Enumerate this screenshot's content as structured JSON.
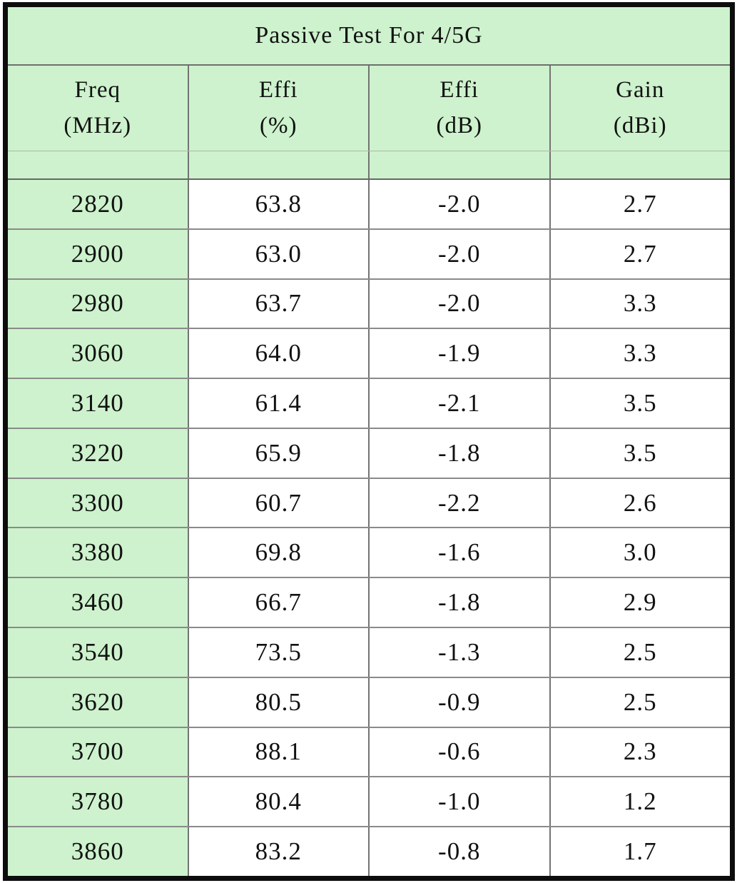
{
  "table": {
    "title": "Passive Test For 4/5G",
    "columns": [
      {
        "name": "Freq",
        "unit": "(MHz)"
      },
      {
        "name": "Effi",
        "unit": "(%)"
      },
      {
        "name": "Effi",
        "unit": "(dB)"
      },
      {
        "name": "Gain",
        "unit": "(dBi)"
      }
    ],
    "rows": [
      {
        "freq": "2820",
        "effi_pct": "63.8",
        "effi_db": "-2.0",
        "gain_dbi": "2.7"
      },
      {
        "freq": "2900",
        "effi_pct": "63.0",
        "effi_db": "-2.0",
        "gain_dbi": "2.7"
      },
      {
        "freq": "2980",
        "effi_pct": "63.7",
        "effi_db": "-2.0",
        "gain_dbi": "3.3"
      },
      {
        "freq": "3060",
        "effi_pct": "64.0",
        "effi_db": "-1.9",
        "gain_dbi": "3.3"
      },
      {
        "freq": "3140",
        "effi_pct": "61.4",
        "effi_db": "-2.1",
        "gain_dbi": "3.5"
      },
      {
        "freq": "3220",
        "effi_pct": "65.9",
        "effi_db": "-1.8",
        "gain_dbi": "3.5"
      },
      {
        "freq": "3300",
        "effi_pct": "60.7",
        "effi_db": "-2.2",
        "gain_dbi": "2.6"
      },
      {
        "freq": "3380",
        "effi_pct": "69.8",
        "effi_db": "-1.6",
        "gain_dbi": "3.0"
      },
      {
        "freq": "3460",
        "effi_pct": "66.7",
        "effi_db": "-1.8",
        "gain_dbi": "2.9"
      },
      {
        "freq": "3540",
        "effi_pct": "73.5",
        "effi_db": "-1.3",
        "gain_dbi": "2.5"
      },
      {
        "freq": "3620",
        "effi_pct": "80.5",
        "effi_db": "-0.9",
        "gain_dbi": "2.5"
      },
      {
        "freq": "3700",
        "effi_pct": "88.1",
        "effi_db": "-0.6",
        "gain_dbi": "2.3"
      },
      {
        "freq": "3780",
        "effi_pct": "80.4",
        "effi_db": "-1.0",
        "gain_dbi": "1.2"
      },
      {
        "freq": "3860",
        "effi_pct": "83.2",
        "effi_db": "-0.8",
        "gain_dbi": "1.7"
      }
    ]
  },
  "colors": {
    "cell_green": "#cdf2cd",
    "cell_white": "#ffffff",
    "outer_border": "#0d0d0d",
    "grid_line": "#8a8a8a",
    "text": "#111111"
  },
  "chart_data": {
    "type": "table",
    "title": "Passive Test For 4/5G",
    "columns": [
      "Freq (MHz)",
      "Effi (%)",
      "Effi (dB)",
      "Gain (dBi)"
    ],
    "rows": [
      [
        2820,
        63.8,
        -2.0,
        2.7
      ],
      [
        2900,
        63.0,
        -2.0,
        2.7
      ],
      [
        2980,
        63.7,
        -2.0,
        3.3
      ],
      [
        3060,
        64.0,
        -1.9,
        3.3
      ],
      [
        3140,
        61.4,
        -2.1,
        3.5
      ],
      [
        3220,
        65.9,
        -1.8,
        3.5
      ],
      [
        3300,
        60.7,
        -2.2,
        2.6
      ],
      [
        3380,
        69.8,
        -1.6,
        3.0
      ],
      [
        3460,
        66.7,
        -1.8,
        2.9
      ],
      [
        3540,
        73.5,
        -1.3,
        2.5
      ],
      [
        3620,
        80.5,
        -0.9,
        2.5
      ],
      [
        3700,
        88.1,
        -0.6,
        2.3
      ],
      [
        3780,
        80.4,
        -1.0,
        1.2
      ],
      [
        3860,
        83.2,
        -0.8,
        1.7
      ]
    ]
  }
}
